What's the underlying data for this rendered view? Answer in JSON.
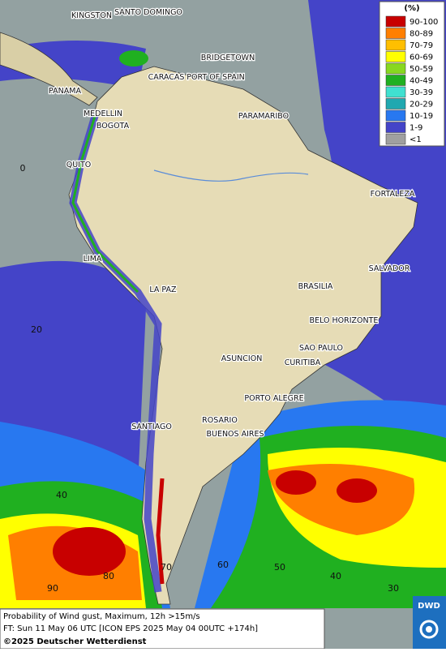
{
  "legend": {
    "title": "(%)",
    "items": [
      {
        "label": "90-100",
        "color": "#c80000"
      },
      {
        "label": "80-89",
        "color": "#ff7f00"
      },
      {
        "label": "70-79",
        "color": "#ffbf00"
      },
      {
        "label": "60-69",
        "color": "#ffff00"
      },
      {
        "label": "50-59",
        "color": "#88d820"
      },
      {
        "label": "40-49",
        "color": "#20b020"
      },
      {
        "label": "30-39",
        "color": "#40e0d0"
      },
      {
        "label": "20-29",
        "color": "#20a8b0"
      },
      {
        "label": "10-19",
        "color": "#2878f0"
      },
      {
        "label": "1-9",
        "color": "#4444c8"
      },
      {
        "label": "<1",
        "color": "#a0a0a0"
      }
    ]
  },
  "cities": [
    "KINGSTON",
    "SANTO DOMINGO",
    "BRIDGETOWN",
    "CARACAS",
    "PORT OF SPAIN",
    "PANAMA",
    "MEDELLIN",
    "BOGOTA",
    "PARAMARIBO",
    "QUITO",
    "FORTALEZA",
    "LIMA",
    "SALVADOR",
    "BRASILIA",
    "LA PAZ",
    "BELO HORIZONTE",
    "SAO PAULO",
    "ASUNCION",
    "CURITIBA",
    "PORTO ALEGRE",
    "ROSARIO",
    "SANTIAGO",
    "BUENOS AIRES"
  ],
  "latitude_labels": [
    "0",
    "20",
    "40"
  ],
  "longitude_labels": [
    "90",
    "80",
    "70",
    "60",
    "50",
    "40",
    "30"
  ],
  "footer": {
    "line1": "Probability of Wind gust, Maximum, 12h >15m/s",
    "line2": "FT: Sun 11 May 06 UTC [ICON EPS 2025 May 04 00UTC +174h]",
    "line3": "©2025 Deutscher Wetterdienst"
  },
  "logo": "DWD"
}
